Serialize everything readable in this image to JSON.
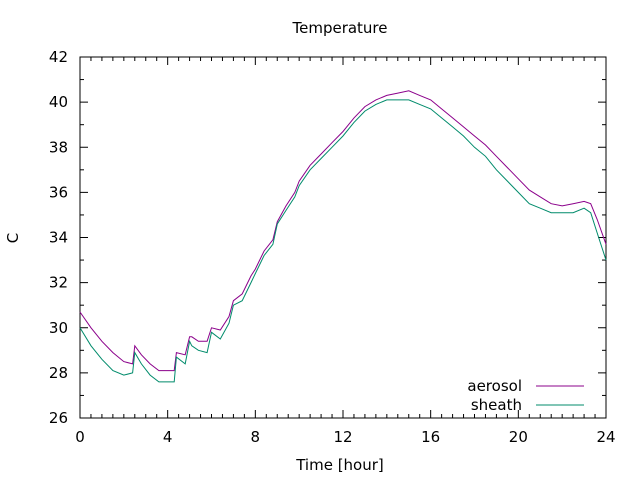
{
  "chart_data": {
    "type": "line",
    "title": "Temperature",
    "xlabel": "Time [hour]",
    "ylabel": "C",
    "xlim": [
      0,
      24
    ],
    "ylim": [
      26,
      42
    ],
    "xticks": [
      0,
      4,
      8,
      12,
      16,
      20,
      24
    ],
    "yticks": [
      26,
      28,
      30,
      32,
      34,
      36,
      38,
      40,
      42
    ],
    "grid": false,
    "legend_position": "bottom-right",
    "series": [
      {
        "name": "aerosol",
        "color": "#8b008b",
        "x": [
          0,
          0.5,
          1,
          1.5,
          2,
          2.4,
          2.5,
          2.8,
          3.2,
          3.6,
          4,
          4.3,
          4.4,
          4.8,
          5,
          5.1,
          5.4,
          5.8,
          6,
          6.4,
          6.8,
          7,
          7.4,
          7.8,
          8,
          8.4,
          8.8,
          9,
          9.4,
          9.8,
          10,
          10.5,
          11,
          11.5,
          12,
          12.5,
          13,
          13.5,
          14,
          14.5,
          15,
          15.5,
          16,
          16.5,
          17,
          17.5,
          18,
          18.5,
          19,
          19.5,
          20,
          20.5,
          21,
          21.5,
          22,
          22.5,
          23,
          23.3,
          23.6,
          24
        ],
        "values": [
          30.7,
          30.0,
          29.4,
          28.9,
          28.5,
          28.4,
          29.2,
          28.8,
          28.4,
          28.1,
          28.1,
          28.1,
          28.9,
          28.8,
          29.6,
          29.6,
          29.4,
          29.4,
          30.0,
          29.9,
          30.5,
          31.2,
          31.5,
          32.3,
          32.6,
          33.4,
          33.9,
          34.7,
          35.4,
          36.0,
          36.5,
          37.2,
          37.7,
          38.2,
          38.7,
          39.3,
          39.8,
          40.1,
          40.3,
          40.4,
          40.5,
          40.3,
          40.1,
          39.7,
          39.3,
          38.9,
          38.5,
          38.1,
          37.6,
          37.1,
          36.6,
          36.1,
          35.8,
          35.5,
          35.4,
          35.5,
          35.6,
          35.5,
          34.8,
          33.7
        ]
      },
      {
        "name": "sheath",
        "color": "#008b6b",
        "x": [
          0,
          0.5,
          1,
          1.5,
          2,
          2.4,
          2.5,
          2.8,
          3.2,
          3.6,
          4,
          4.3,
          4.4,
          4.8,
          5,
          5.1,
          5.4,
          5.8,
          6,
          6.4,
          6.8,
          7,
          7.4,
          7.8,
          8,
          8.4,
          8.8,
          9,
          9.4,
          9.8,
          10,
          10.5,
          11,
          11.5,
          12,
          12.5,
          13,
          13.5,
          14,
          14.5,
          15,
          15.5,
          16,
          16.5,
          17,
          17.5,
          18,
          18.5,
          19,
          19.5,
          20,
          20.5,
          21,
          21.5,
          22,
          22.5,
          23,
          23.3,
          23.6,
          24
        ],
        "values": [
          30.0,
          29.2,
          28.6,
          28.1,
          27.9,
          28.0,
          28.9,
          28.4,
          27.9,
          27.6,
          27.6,
          27.6,
          28.7,
          28.4,
          29.4,
          29.2,
          29.0,
          28.9,
          29.8,
          29.5,
          30.2,
          31.0,
          31.2,
          32.0,
          32.4,
          33.2,
          33.7,
          34.6,
          35.2,
          35.8,
          36.3,
          37.0,
          37.5,
          38.0,
          38.5,
          39.1,
          39.6,
          39.9,
          40.1,
          40.1,
          40.1,
          39.9,
          39.7,
          39.3,
          38.9,
          38.5,
          38.0,
          37.6,
          37.0,
          36.5,
          36.0,
          35.5,
          35.3,
          35.1,
          35.1,
          35.1,
          35.3,
          35.1,
          34.2,
          33.0
        ]
      }
    ]
  }
}
